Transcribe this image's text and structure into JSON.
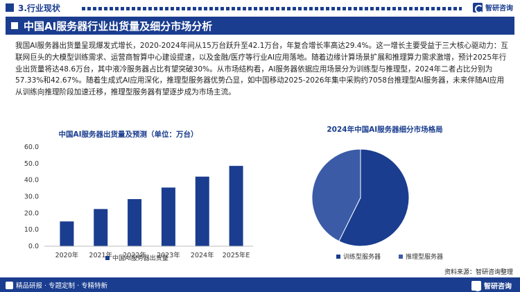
{
  "header": {
    "section_title": "3.行业现状",
    "brand": "智研咨询"
  },
  "heading": "中国AI服务器行业出货量及细分市场分析",
  "paragraph": "我国AI服务器出货量呈现爆发式增长，2020-2024年间从15万台跃升至42.1万台，年复合增长率高达29.4%。这一增长主要受益于三大核心驱动力：互联网巨头的大模型训练需求、运营商智算中心建设提速，以及金融/医疗等行业AI应用落地。随着边缘计算场景扩展和推理算力需求激增，预计2025年行业出货量将达48.6万台，其中液冷服务器占比有望突破30%。从市场结构看，AI服务器依据应用场景分为训练型与推理型，2024年二者占比分别为57.33%和42.67%。随着生成式AI应用深化，推理型服务器优势凸显，如中国移动2025-2026年集中采购约7058台推理型AI服务器，未来伴随AI应用从训练向推理阶段加速迁移，推理型服务器有望逐步成为市场主流。",
  "chart_data": [
    {
      "type": "bar",
      "title": "中国AI服务器出货量及预测（单位：万台）",
      "categories": [
        "2020年",
        "2021年",
        "2022年",
        "2023年",
        "2024年",
        "2025年E"
      ],
      "series": [
        {
          "name": "中国AI服务器出货量",
          "values": [
            15,
            22.5,
            28.5,
            35.5,
            42.1,
            48.6
          ]
        }
      ],
      "ylim": [
        0,
        60
      ],
      "yticks": [
        "0.0",
        "10.0",
        "20.0",
        "30.0",
        "40.0",
        "50.0",
        "60.0"
      ],
      "legend_position": "bottom",
      "color": "#1a3d8f"
    },
    {
      "type": "pie",
      "title": "2024年中国AI服务器细分市场格局",
      "labels": [
        "训练型服务器",
        "推理型服务器"
      ],
      "values": [
        57.33,
        42.67
      ],
      "colors": [
        "#1a3d8f",
        "#3b5ba7"
      ],
      "legend_position": "bottom"
    }
  ],
  "source": "资料来源：智研咨询整理",
  "footer": {
    "left": "精品研报 · 专题定制 · 专精特新",
    "brand": "智研咨询"
  }
}
